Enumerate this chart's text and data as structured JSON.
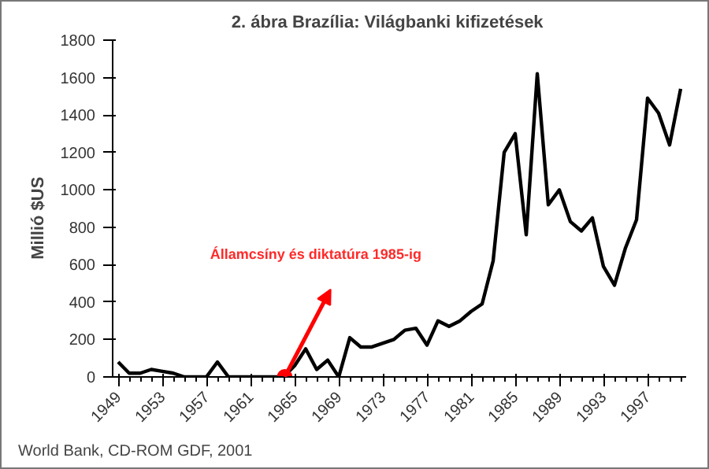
{
  "chart_data": {
    "type": "line",
    "title": "2. ábra      Brazília: Világbanki kifizetések",
    "ylabel": "Millió     $US",
    "x": [
      1949,
      1950,
      1951,
      1952,
      1953,
      1954,
      1955,
      1956,
      1957,
      1958,
      1959,
      1960,
      1961,
      1962,
      1963,
      1964,
      1965,
      1966,
      1967,
      1968,
      1969,
      1970,
      1971,
      1972,
      1973,
      1974,
      1975,
      1976,
      1977,
      1978,
      1979,
      1980,
      1981,
      1982,
      1983,
      1984,
      1985,
      1986,
      1987,
      1988,
      1989,
      1990,
      1991,
      1992,
      1993,
      1994,
      1995,
      1996,
      1997,
      1998,
      1999,
      2000
    ],
    "series": [
      {
        "color": "#000000",
        "values": [
          80,
          20,
          20,
          40,
          30,
          20,
          0,
          0,
          0,
          80,
          0,
          0,
          0,
          0,
          0,
          0,
          60,
          150,
          40,
          90,
          0,
          210,
          160,
          160,
          180,
          200,
          250,
          260,
          170,
          300,
          270,
          300,
          350,
          390,
          620,
          1200,
          1300,
          760,
          1620,
          920,
          1000,
          830,
          780,
          850,
          590,
          490,
          690,
          840,
          1490,
          1410,
          1240,
          1540
        ]
      }
    ],
    "xlim": [
      1948.5,
      2000.5
    ],
    "xticks": [
      1949,
      1953,
      1957,
      1961,
      1965,
      1969,
      1973,
      1977,
      1981,
      1985,
      1989,
      1993,
      1997
    ],
    "ylim": [
      0,
      1800
    ],
    "yticks": [
      0,
      200,
      400,
      600,
      800,
      1000,
      1200,
      1400,
      1600,
      1800
    ],
    "grid": false,
    "marker": "none",
    "line_style": "solid",
    "annotations": [
      "Államcsíny és diktatúra 1985-ig",
      "World Bank, CD-ROM GDF, 2001"
    ]
  }
}
